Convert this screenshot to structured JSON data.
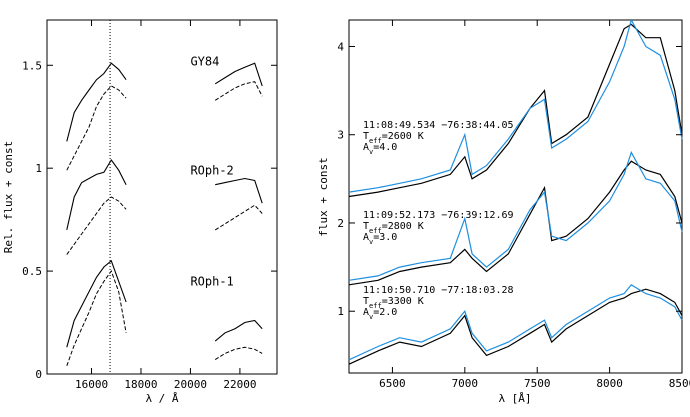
{
  "colors": {
    "observed": "#000000",
    "model": "#1e8fe0"
  },
  "chart_data": [
    {
      "type": "line",
      "panel": "left",
      "xlabel": "λ / Å",
      "ylabel": "Rel. flux + const",
      "xlim": [
        14200,
        23500
      ],
      "ylim": [
        0,
        1.72
      ],
      "xticks": [
        16000,
        18000,
        20000,
        22000
      ],
      "yticks": [
        0,
        0.5,
        1,
        1.5
      ],
      "ytick_labels": [
        "0",
        "0.5",
        "1",
        "1.5"
      ],
      "vline_x": 16750,
      "labels": [
        {
          "text": "GY84",
          "x": 20000,
          "y": 1.5
        },
        {
          "text": "ROph-2",
          "x": 20000,
          "y": 0.97
        },
        {
          "text": "ROph-1",
          "x": 20000,
          "y": 0.43
        }
      ],
      "series": [
        {
          "name": "GY84 (H)",
          "style": "solid",
          "x": [
            15000,
            15300,
            15600,
            15900,
            16200,
            16500,
            16800,
            17100,
            17400
          ],
          "y": [
            1.13,
            1.27,
            1.33,
            1.38,
            1.43,
            1.46,
            1.51,
            1.48,
            1.43
          ]
        },
        {
          "name": "GY84 (H) model",
          "style": "dashed",
          "x": [
            15000,
            15300,
            15600,
            15900,
            16200,
            16500,
            16800,
            17100,
            17400
          ],
          "y": [
            0.99,
            1.06,
            1.13,
            1.2,
            1.3,
            1.36,
            1.4,
            1.38,
            1.34
          ]
        },
        {
          "name": "GY84 (K)",
          "style": "solid",
          "x": [
            21000,
            21400,
            21800,
            22200,
            22600,
            22900
          ],
          "y": [
            1.41,
            1.44,
            1.47,
            1.49,
            1.51,
            1.4
          ]
        },
        {
          "name": "GY84 (K) model",
          "style": "dashed",
          "x": [
            21000,
            21400,
            21800,
            22200,
            22600,
            22900
          ],
          "y": [
            1.33,
            1.36,
            1.39,
            1.41,
            1.42,
            1.35
          ]
        },
        {
          "name": "ROph-2 (H)",
          "style": "solid",
          "x": [
            15000,
            15300,
            15600,
            15900,
            16200,
            16500,
            16800,
            17100,
            17400
          ],
          "y": [
            0.7,
            0.86,
            0.93,
            0.95,
            0.97,
            0.98,
            1.04,
            0.99,
            0.92
          ]
        },
        {
          "name": "ROph-2 (H) model",
          "style": "dashed",
          "x": [
            15000,
            15300,
            15600,
            15900,
            16200,
            16500,
            16800,
            17100,
            17400
          ],
          "y": [
            0.58,
            0.63,
            0.68,
            0.73,
            0.78,
            0.83,
            0.86,
            0.84,
            0.8
          ]
        },
        {
          "name": "ROph-2 (K)",
          "style": "solid",
          "x": [
            21000,
            21400,
            21800,
            22200,
            22600,
            22900
          ],
          "y": [
            0.92,
            0.93,
            0.94,
            0.95,
            0.94,
            0.83
          ]
        },
        {
          "name": "ROph-2 (K) model",
          "style": "dashed",
          "x": [
            21000,
            21400,
            21800,
            22200,
            22600,
            22900
          ],
          "y": [
            0.7,
            0.73,
            0.76,
            0.79,
            0.82,
            0.78
          ]
        },
        {
          "name": "ROph-1 (H)",
          "style": "solid",
          "x": [
            15000,
            15300,
            15600,
            15900,
            16200,
            16500,
            16800,
            17100,
            17400
          ],
          "y": [
            0.13,
            0.26,
            0.33,
            0.4,
            0.47,
            0.52,
            0.55,
            0.45,
            0.35
          ]
        },
        {
          "name": "ROph-1 (H) model",
          "style": "dashed",
          "x": [
            15000,
            15300,
            15600,
            15900,
            16200,
            16500,
            16800,
            17100,
            17400
          ],
          "y": [
            0.04,
            0.14,
            0.22,
            0.3,
            0.39,
            0.45,
            0.5,
            0.4,
            0.2
          ]
        },
        {
          "name": "ROph-1 (K)",
          "style": "solid",
          "x": [
            21000,
            21400,
            21800,
            22200,
            22600,
            22900
          ],
          "y": [
            0.16,
            0.2,
            0.22,
            0.25,
            0.26,
            0.22
          ]
        },
        {
          "name": "ROph-1 (K) model",
          "style": "dashed",
          "x": [
            21000,
            21400,
            21800,
            22200,
            22600,
            22900
          ],
          "y": [
            0.07,
            0.1,
            0.12,
            0.13,
            0.12,
            0.1
          ]
        }
      ]
    },
    {
      "type": "line",
      "panel": "right",
      "xlabel": "λ [Å]",
      "ylabel": "flux + const",
      "xlim": [
        6200,
        8500
      ],
      "ylim": [
        0.3,
        4.3
      ],
      "xticks": [
        6500,
        7000,
        7500,
        8000,
        8500
      ],
      "yticks": [
        1,
        2,
        3,
        4
      ],
      "ytick_labels": [
        "1",
        "2",
        "3",
        "4"
      ],
      "annotations": [
        {
          "lines": [
            "11:08:49.534  −76:38:44.05",
            "T_eff=2600 K",
            "A_v=4.0"
          ]
        },
        {
          "lines": [
            "11:09:52.173  −76:39:12.69",
            "T_eff=2800 K",
            "A_v=3.0"
          ]
        },
        {
          "lines": [
            "11:10:50.710  −77:18:03.28",
            "T_eff=3300 K",
            "A_v=2.0"
          ]
        }
      ],
      "series": [
        {
          "name": "11:08:49.534 observed",
          "color": "observed",
          "x": [
            6200,
            6400,
            6550,
            6700,
            6900,
            7000,
            7050,
            7150,
            7300,
            7450,
            7550,
            7600,
            7700,
            7850,
            8000,
            8100,
            8150,
            8250,
            8350,
            8450,
            8500
          ],
          "y": [
            2.3,
            2.35,
            2.4,
            2.45,
            2.55,
            2.75,
            2.5,
            2.6,
            2.9,
            3.3,
            3.5,
            2.9,
            3.0,
            3.2,
            3.8,
            4.2,
            4.25,
            4.1,
            4.1,
            3.5,
            3.0
          ]
        },
        {
          "name": "11:08:49.534 model",
          "color": "model",
          "x": [
            6200,
            6400,
            6550,
            6700,
            6900,
            7000,
            7050,
            7150,
            7300,
            7450,
            7550,
            7600,
            7700,
            7850,
            8000,
            8100,
            8150,
            8250,
            8350,
            8450,
            8500
          ],
          "y": [
            2.35,
            2.4,
            2.45,
            2.5,
            2.6,
            3.0,
            2.55,
            2.65,
            2.95,
            3.3,
            3.4,
            2.85,
            2.95,
            3.15,
            3.6,
            4.0,
            4.3,
            4.0,
            3.9,
            3.4,
            2.95
          ]
        },
        {
          "name": "11:09:52.173 observed",
          "color": "observed",
          "x": [
            6200,
            6400,
            6550,
            6700,
            6900,
            7000,
            7050,
            7150,
            7300,
            7450,
            7550,
            7600,
            7700,
            7850,
            8000,
            8100,
            8150,
            8250,
            8350,
            8450,
            8500
          ],
          "y": [
            1.3,
            1.35,
            1.45,
            1.5,
            1.55,
            1.7,
            1.6,
            1.45,
            1.65,
            2.1,
            2.4,
            1.8,
            1.85,
            2.05,
            2.35,
            2.6,
            2.7,
            2.6,
            2.55,
            2.3,
            2.0
          ]
        },
        {
          "name": "11:09:52.173 model",
          "color": "model",
          "x": [
            6200,
            6400,
            6550,
            6700,
            6900,
            7000,
            7050,
            7150,
            7300,
            7450,
            7550,
            7600,
            7700,
            7850,
            8000,
            8100,
            8150,
            8250,
            8350,
            8450,
            8500
          ],
          "y": [
            1.35,
            1.4,
            1.5,
            1.55,
            1.6,
            2.05,
            1.65,
            1.5,
            1.7,
            2.15,
            2.35,
            1.85,
            1.8,
            2.0,
            2.25,
            2.55,
            2.8,
            2.5,
            2.45,
            2.25,
            1.9
          ]
        },
        {
          "name": "11:10:50.710 observed",
          "color": "observed",
          "x": [
            6200,
            6400,
            6550,
            6700,
            6900,
            7000,
            7050,
            7150,
            7300,
            7450,
            7550,
            7600,
            7700,
            7850,
            8000,
            8100,
            8150,
            8250,
            8350,
            8450,
            8500
          ],
          "y": [
            0.4,
            0.55,
            0.65,
            0.6,
            0.75,
            0.95,
            0.7,
            0.5,
            0.6,
            0.75,
            0.85,
            0.65,
            0.8,
            0.95,
            1.1,
            1.15,
            1.2,
            1.25,
            1.2,
            1.1,
            0.95
          ]
        },
        {
          "name": "11:10:50.710 model",
          "color": "model",
          "x": [
            6200,
            6400,
            6550,
            6700,
            6900,
            7000,
            7050,
            7150,
            7300,
            7450,
            7550,
            7600,
            7700,
            7850,
            8000,
            8100,
            8150,
            8250,
            8350,
            8450,
            8500
          ],
          "y": [
            0.45,
            0.6,
            0.7,
            0.65,
            0.8,
            1.0,
            0.75,
            0.55,
            0.65,
            0.8,
            0.9,
            0.7,
            0.85,
            1.0,
            1.15,
            1.2,
            1.3,
            1.2,
            1.15,
            1.05,
            0.9
          ]
        }
      ]
    }
  ]
}
